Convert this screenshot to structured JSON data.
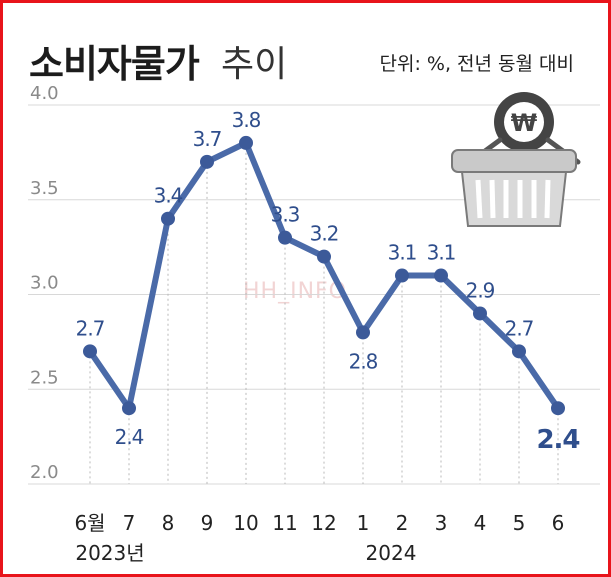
{
  "header": {
    "title_main": "소비자물가",
    "title_sub": "추이",
    "unit": "단위: %, 전년 동월 대비"
  },
  "watermark": "HH_INFO",
  "basket_icon": "basket-won-icon",
  "colors": {
    "line": "#4a6aa8",
    "point": "#3c5a99",
    "label": "#2f4e8c",
    "frame": "#e8141b",
    "grid": "#d8d8d8"
  },
  "chart_data": {
    "type": "line",
    "title": "소비자물가 추이",
    "unit": "단위: %, 전년 동월 대비",
    "categories": [
      "6월",
      "7",
      "8",
      "9",
      "10",
      "11",
      "12",
      "1",
      "2",
      "3",
      "4",
      "5",
      "6"
    ],
    "year_labels": [
      {
        "category": "6월",
        "text": "2023년"
      },
      {
        "category": "1",
        "text": "2024"
      }
    ],
    "values": [
      2.7,
      2.4,
      3.4,
      3.7,
      3.8,
      3.3,
      3.2,
      2.8,
      3.1,
      3.1,
      2.9,
      2.7,
      2.4
    ],
    "data_labels": [
      "2.7",
      "2.4",
      "3.4",
      "3.7",
      "3.8",
      "3.3",
      "3.2",
      "2.8",
      "3.1",
      "3.1",
      "2.9",
      "2.7",
      "2.4"
    ],
    "ylim": [
      2.0,
      4.0
    ],
    "yticks": [
      2.0,
      2.5,
      3.0,
      3.5,
      4.0
    ],
    "ytick_labels": [
      "2.0",
      "2.5",
      "3.0",
      "3.5",
      "4.0"
    ],
    "grid": true
  }
}
